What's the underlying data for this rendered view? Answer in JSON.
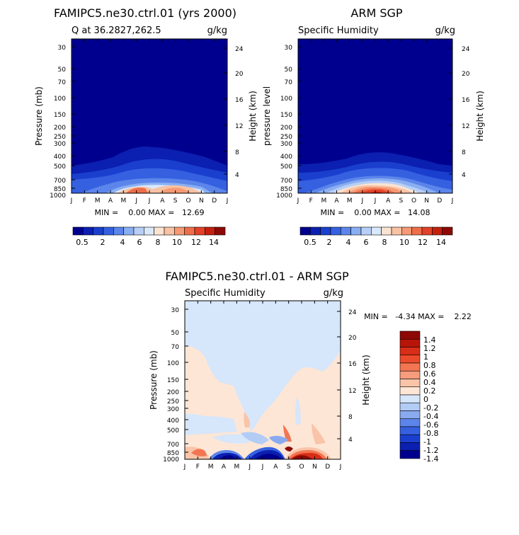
{
  "chart_data": [
    {
      "type": "heatmap",
      "title": "FAMIPC5.ne30.ctrl.01 (yrs 2000)",
      "subtitle_left": "Q at 36.2827,262.5",
      "units": "g/kg",
      "ylabel": "Pressure (mb)",
      "ylabel_right": "Height (km)",
      "x_ticks": [
        "J",
        "F",
        "M",
        "A",
        "M",
        "J",
        "J",
        "A",
        "S",
        "O",
        "N",
        "D",
        "J"
      ],
      "y_ticks": [
        "30",
        "50",
        "70",
        "100",
        "150",
        "200",
        "250",
        "300",
        "400",
        "500",
        "700",
        "850",
        "1000"
      ],
      "y_right_ticks": [
        "24",
        "20",
        "16",
        "12",
        "8",
        "4"
      ],
      "min_label": "MIN =    0.00 MAX =   12.69",
      "min": 0.0,
      "max": 12.69,
      "colorbar_labels": [
        "0.5",
        "2",
        "4",
        "6",
        "8",
        "10",
        "12",
        "14"
      ],
      "colors": [
        "#00008f",
        "#0b1fb0",
        "#1a3fcf",
        "#3560e0",
        "#5b85ea",
        "#8aaef2",
        "#b7cff6",
        "#d9e8fb",
        "#fbe3d1",
        "#f8c2a3",
        "#f59a74",
        "#ef6e4a",
        "#e24228",
        "#c3200e",
        "#8e0905"
      ]
    },
    {
      "type": "heatmap",
      "title": "ARM SGP",
      "subtitle_left": "Specific Humidity",
      "units": "g/kg",
      "ylabel": "pressure level",
      "ylabel_right": "Height (km)",
      "x_ticks": [
        "J",
        "F",
        "M",
        "A",
        "M",
        "J",
        "J",
        "A",
        "S",
        "O",
        "N",
        "D",
        "J"
      ],
      "y_ticks": [
        "30",
        "50",
        "70",
        "100",
        "150",
        "200",
        "250",
        "300",
        "400",
        "500",
        "700",
        "850",
        "1000"
      ],
      "y_right_ticks": [
        "24",
        "20",
        "16",
        "12",
        "8",
        "4"
      ],
      "min_label": "MIN =    0.00 MAX =   14.08",
      "min": 0.0,
      "max": 14.08,
      "colorbar_labels": [
        "0.5",
        "2",
        "4",
        "6",
        "8",
        "10",
        "12",
        "14"
      ]
    },
    {
      "type": "heatmap",
      "title": "FAMIPC5.ne30.ctrl.01 - ARM SGP",
      "subtitle_left": "Specific Humidity",
      "units": "g/kg",
      "ylabel": "Pressure (mb)",
      "ylabel_right": "Height (km)",
      "x_ticks": [
        "J",
        "F",
        "M",
        "A",
        "M",
        "J",
        "J",
        "A",
        "S",
        "O",
        "N",
        "D",
        "J"
      ],
      "y_ticks": [
        "30",
        "50",
        "70",
        "100",
        "150",
        "200",
        "250",
        "300",
        "400",
        "500",
        "700",
        "850",
        "1000"
      ],
      "y_right_ticks": [
        "24",
        "20",
        "16",
        "12",
        "8",
        "4"
      ],
      "min_label": "MIN =   -4.34 MAX =    2.22",
      "min": -4.34,
      "max": 2.22,
      "colorbar_labels": [
        "1.4",
        "1.2",
        "1",
        "0.8",
        "0.6",
        "0.4",
        "0.2",
        "0",
        "-0.2",
        "-0.4",
        "-0.6",
        "-0.8",
        "-1",
        "-1.2",
        "-1.4"
      ],
      "colors": [
        "#8e0905",
        "#b81509",
        "#d82e18",
        "#ec4b2b",
        "#f47552",
        "#f79c7c",
        "#f9c4a8",
        "#fde6d6",
        "#d6e6fb",
        "#b3ccf6",
        "#8aaaf0",
        "#5b85ea",
        "#3560e0",
        "#1a3fcf",
        "#0b1fb0",
        "#00008f"
      ]
    }
  ]
}
